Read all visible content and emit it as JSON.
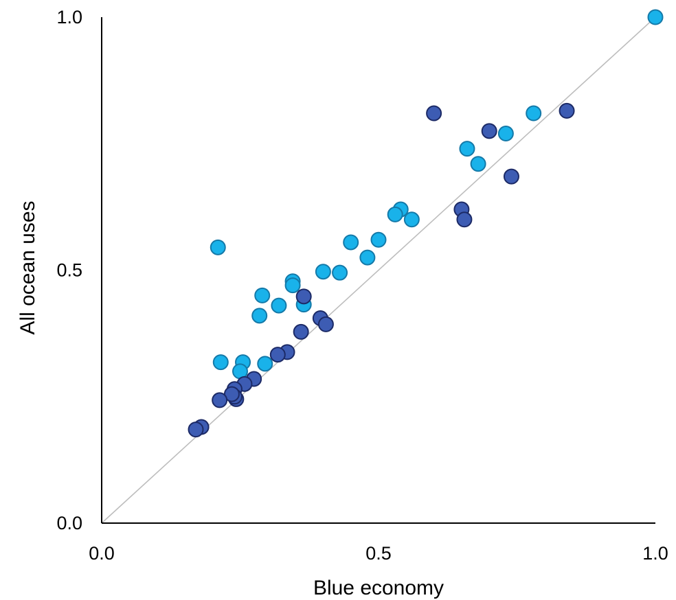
{
  "chart_data": {
    "type": "scatter",
    "title": "",
    "xlabel": "Blue economy",
    "ylabel": "All ocean uses",
    "xlim": [
      0,
      1
    ],
    "ylim": [
      0,
      1
    ],
    "xticks": [
      "0.0",
      "0.5",
      "1.0"
    ],
    "yticks": [
      "0.0",
      "0.5",
      "1.0"
    ],
    "grid": false,
    "legend": "none",
    "reference_line": {
      "from": [
        0,
        0
      ],
      "to": [
        1,
        1
      ],
      "color": "#bdbdbd"
    },
    "colors": {
      "light": "#19b2ea",
      "light_stroke": "#1479a8",
      "dark": "#3d5cb3",
      "dark_stroke": "#1c2a66"
    },
    "series": [
      {
        "points": [
          {
            "x": 1.0,
            "y": 1.0
          },
          {
            "x": 0.78,
            "y": 0.81
          },
          {
            "x": 0.73,
            "y": 0.77
          },
          {
            "x": 0.66,
            "y": 0.74
          },
          {
            "x": 0.68,
            "y": 0.71
          },
          {
            "x": 0.54,
            "y": 0.62
          },
          {
            "x": 0.53,
            "y": 0.61
          },
          {
            "x": 0.56,
            "y": 0.6
          },
          {
            "x": 0.5,
            "y": 0.56
          },
          {
            "x": 0.45,
            "y": 0.555
          },
          {
            "x": 0.48,
            "y": 0.525
          },
          {
            "x": 0.21,
            "y": 0.545
          },
          {
            "x": 0.43,
            "y": 0.495
          },
          {
            "x": 0.4,
            "y": 0.497
          },
          {
            "x": 0.345,
            "y": 0.478
          },
          {
            "x": 0.345,
            "y": 0.47
          },
          {
            "x": 0.29,
            "y": 0.45
          },
          {
            "x": 0.32,
            "y": 0.43
          },
          {
            "x": 0.365,
            "y": 0.432
          },
          {
            "x": 0.285,
            "y": 0.41
          },
          {
            "x": 0.215,
            "y": 0.318
          },
          {
            "x": 0.255,
            "y": 0.318
          },
          {
            "x": 0.295,
            "y": 0.315
          },
          {
            "x": 0.25,
            "y": 0.3
          }
        ]
      },
      {
        "points": [
          {
            "x": 0.84,
            "y": 0.815
          },
          {
            "x": 0.6,
            "y": 0.81
          },
          {
            "x": 0.7,
            "y": 0.775
          },
          {
            "x": 0.74,
            "y": 0.685
          },
          {
            "x": 0.65,
            "y": 0.62
          },
          {
            "x": 0.655,
            "y": 0.6
          },
          {
            "x": 0.365,
            "y": 0.448
          },
          {
            "x": 0.395,
            "y": 0.405
          },
          {
            "x": 0.405,
            "y": 0.393
          },
          {
            "x": 0.36,
            "y": 0.378
          },
          {
            "x": 0.335,
            "y": 0.338
          },
          {
            "x": 0.318,
            "y": 0.333
          },
          {
            "x": 0.275,
            "y": 0.285
          },
          {
            "x": 0.258,
            "y": 0.275
          },
          {
            "x": 0.24,
            "y": 0.265
          },
          {
            "x": 0.243,
            "y": 0.245
          },
          {
            "x": 0.24,
            "y": 0.25
          },
          {
            "x": 0.235,
            "y": 0.255
          },
          {
            "x": 0.213,
            "y": 0.243
          },
          {
            "x": 0.18,
            "y": 0.19
          },
          {
            "x": 0.17,
            "y": 0.185
          }
        ]
      }
    ]
  }
}
